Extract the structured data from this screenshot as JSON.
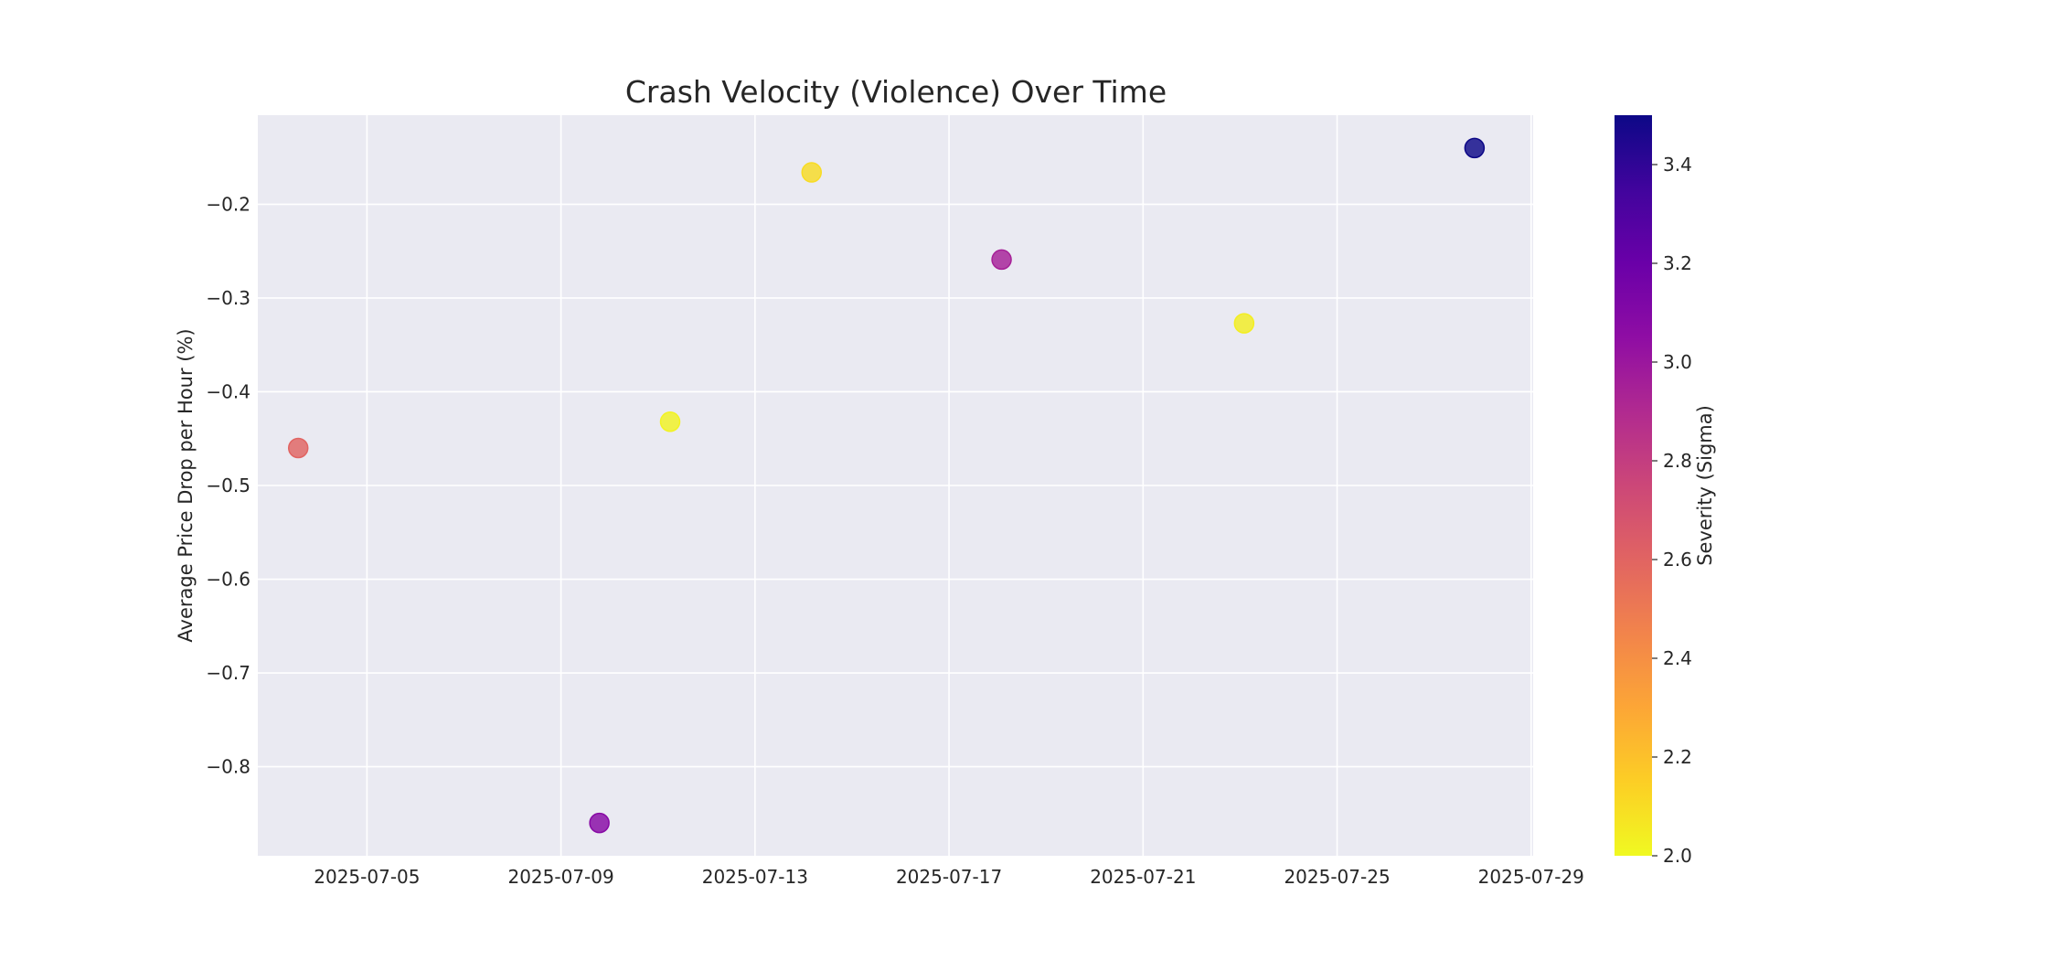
{
  "chart_data": {
    "type": "scatter",
    "title": "Crash Velocity (Violence) Over Time",
    "xlabel": "",
    "ylabel": "Average Price Drop per Hour (%)",
    "x_type": "date",
    "xlim": [
      "2025-07-02T18:00",
      "2025-07-29T01:00"
    ],
    "ylim": [
      -0.895,
      -0.105
    ],
    "x_ticks": [
      "2025-07-05",
      "2025-07-09",
      "2025-07-13",
      "2025-07-17",
      "2025-07-21",
      "2025-07-25",
      "2025-07-29"
    ],
    "y_ticks": [
      -0.2,
      -0.3,
      -0.4,
      -0.5,
      -0.6,
      -0.7,
      -0.8
    ],
    "y_tick_labels": [
      "−0.2",
      "−0.3",
      "−0.4",
      "−0.5",
      "−0.6",
      "−0.7",
      "−0.8"
    ],
    "grid": true,
    "colormap": "plasma_r",
    "colorbar": {
      "label": "Severity (Sigma)",
      "range": [
        2.0,
        3.5
      ],
      "ticks": [
        2.0,
        2.2,
        2.4,
        2.6,
        2.8,
        3.0,
        3.2,
        3.4
      ],
      "tick_labels": [
        "2.0",
        "2.2",
        "2.4",
        "2.6",
        "2.8",
        "3.0",
        "3.2",
        "3.4"
      ]
    },
    "points": [
      {
        "x": "2025-07-03T14:00",
        "y": -0.46,
        "severity": 2.6
      },
      {
        "x": "2025-07-09T19:00",
        "y": -0.86,
        "severity": 3.08
      },
      {
        "x": "2025-07-11T06:00",
        "y": -0.432,
        "severity": 2.02
      },
      {
        "x": "2025-07-14T04:00",
        "y": -0.166,
        "severity": 2.1
      },
      {
        "x": "2025-07-18T02:00",
        "y": -0.259,
        "severity": 2.95
      },
      {
        "x": "2025-07-23T02:00",
        "y": -0.327,
        "severity": 2.04
      },
      {
        "x": "2025-07-27T20:00",
        "y": -0.14,
        "severity": 3.5
      }
    ]
  }
}
